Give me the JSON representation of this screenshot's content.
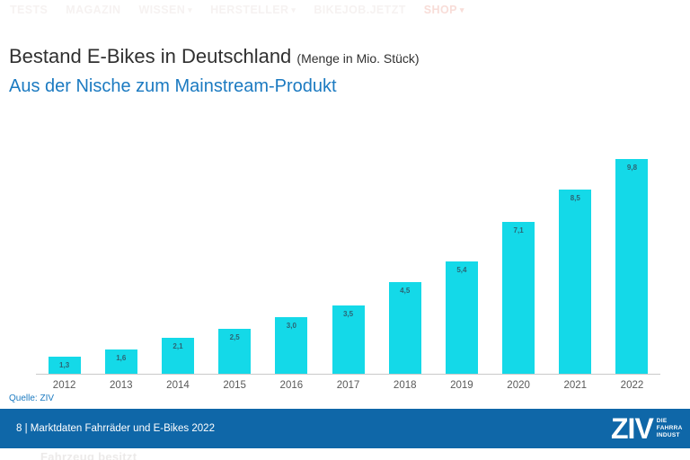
{
  "nav": {
    "items": [
      {
        "label": "TESTS",
        "dropdown": false,
        "accent": false
      },
      {
        "label": "MAGAZIN",
        "dropdown": false,
        "accent": false
      },
      {
        "label": "WISSEN",
        "dropdown": true,
        "accent": false
      },
      {
        "label": "HERSTELLER",
        "dropdown": true,
        "accent": false
      },
      {
        "label": "BIKEJOB.JETZT",
        "dropdown": false,
        "accent": false
      },
      {
        "label": "SHOP",
        "dropdown": true,
        "accent": true
      }
    ]
  },
  "header": {
    "title": "Bestand E-Bikes in Deutschland",
    "unit_note": "(Menge in Mio. Stück)",
    "subtitle": "Aus der Nische zum Mainstream-Produkt"
  },
  "chart_data": {
    "type": "bar",
    "title": "Bestand E-Bikes in Deutschland",
    "subtitle": "Aus der Nische zum Mainstream-Produkt",
    "unit": "Menge in Mio. Stück",
    "categories": [
      "2012",
      "2013",
      "2014",
      "2015",
      "2016",
      "2017",
      "2018",
      "2019",
      "2020",
      "2021",
      "2022"
    ],
    "values": [
      1.3,
      1.6,
      2.1,
      2.5,
      3.0,
      3.5,
      4.5,
      5.4,
      7.1,
      8.5,
      9.8
    ],
    "value_labels": [
      "1,3",
      "1,6",
      "2,1",
      "2,5",
      "3,0",
      "3,5",
      "4,5",
      "5,4",
      "7,1",
      "8,5",
      "9,8"
    ],
    "xlabel": "",
    "ylabel": "",
    "ylim": [
      0,
      10
    ],
    "grid": false,
    "legend": false
  },
  "source": {
    "label": "Quelle: ZIV"
  },
  "footer": {
    "page_text": "8 | Marktdaten Fahrräder und E-Bikes 2022",
    "logo": "ZIV",
    "logo_sub_lines": [
      "DIE",
      "FAHRRA",
      "INDUST"
    ]
  },
  "background_text": {
    "bottom_left": "Fahrzeug besitzt"
  },
  "colors": {
    "bar-color": "#14d9e8",
    "footer-bg": "#0f67a8",
    "accent-blue": "#1b7ac1",
    "title-color": "#303030",
    "axis-label": "#595959",
    "value-label": "#2c6474",
    "nav-faint": "#f6f2f1",
    "nav-accent": "#f8ddd8"
  }
}
